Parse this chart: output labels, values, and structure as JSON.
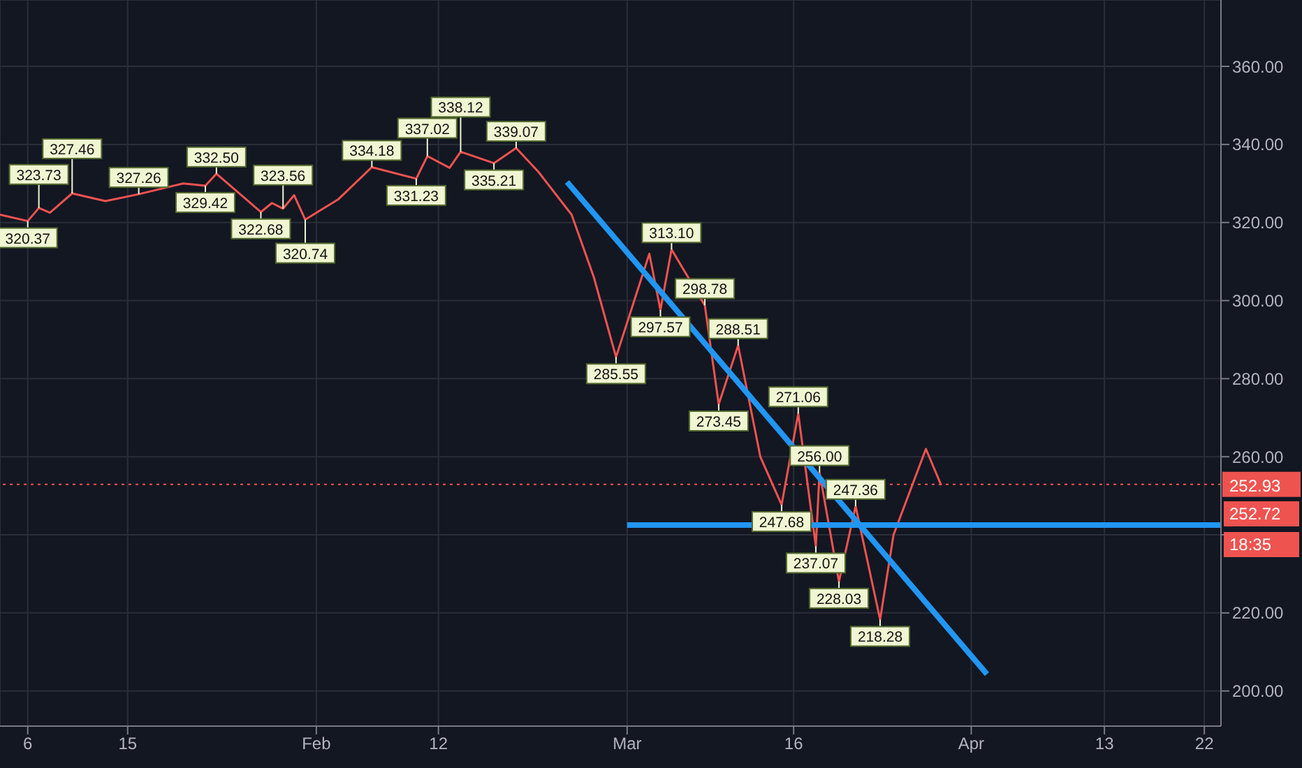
{
  "chart_data": {
    "type": "line",
    "xlim": [
      "--01-03T12:00",
      "--04-23T12:00"
    ],
    "xticks": [
      {
        "value": "--01-06",
        "label": "6"
      },
      {
        "value": "--01-15",
        "label": "15"
      },
      {
        "value": "--02-01",
        "label": "Feb"
      },
      {
        "value": "--02-12",
        "label": "12"
      },
      {
        "value": "--03-01",
        "label": "Mar"
      },
      {
        "value": "--03-16",
        "label": "16"
      },
      {
        "value": "--04-01",
        "label": "Apr"
      },
      {
        "value": "--04-13",
        "label": "13"
      },
      {
        "value": "--04-22",
        "label": "22"
      }
    ],
    "ylim": [
      191,
      377
    ],
    "yticks": [
      {
        "value": 200,
        "label": "200.00"
      },
      {
        "value": 220,
        "label": "220.00"
      },
      {
        "value": 240,
        "label": null
      },
      {
        "value": 260,
        "label": "260.00"
      },
      {
        "value": 280,
        "label": "280.00"
      },
      {
        "value": 300,
        "label": "300.00"
      },
      {
        "value": 320,
        "label": "320.00"
      },
      {
        "value": 340,
        "label": "340.00"
      },
      {
        "value": 360,
        "label": "360.00"
      }
    ],
    "grid": true,
    "series": [
      {
        "color": "#ef5350",
        "x": [
          "--01-03T12:00",
          "--01-06",
          "--01-07",
          "--01-08",
          "--01-10",
          "--01-13",
          "--01-16",
          "--01-20",
          "--01-22",
          "--01-23",
          "--01-27",
          "--01-28",
          "--01-29",
          "--01-30",
          "--01-31",
          "--02-03",
          "--02-06",
          "--02-10",
          "--02-11",
          "--02-13",
          "--02-14",
          "--02-17",
          "--02-19",
          "--02-21",
          "--02-24",
          "--02-26",
          "--02-28",
          "--03-03",
          "--03-04",
          "--03-05",
          "--03-08",
          "--03-09T06:00",
          "--03-11",
          "--03-13",
          "--03-14T22:00",
          "--03-16T10:00",
          "--03-18T00:00",
          "--03-18T08:00",
          "--03-20T02:00",
          "--03-21T14:00",
          "--03-23T19:00",
          "--03-25",
          "--03-27T22:00",
          "--03-29T07:00"
        ],
        "values": [
          322,
          320.37,
          323.73,
          322.5,
          327.46,
          325.5,
          327.26,
          330,
          329.42,
          332.5,
          322.68,
          325,
          323.56,
          327,
          320.74,
          326,
          334.18,
          331.23,
          337.02,
          334,
          338.12,
          335.21,
          339.07,
          333,
          322,
          306,
          285.55,
          312,
          297.57,
          313.1,
          298.78,
          273.45,
          288.51,
          260,
          247.68,
          271.06,
          237.07,
          256,
          228.03,
          247.36,
          218.28,
          240,
          262,
          252.72
        ]
      },
      {
        "color": "#2196f3",
        "x": [
          "--02-23T14:00",
          "--04-02T10:00"
        ],
        "values": [
          330.4,
          204.3
        ]
      },
      {
        "color": "#2196f3",
        "x": [
          "--03-01",
          "--04-23T12:00"
        ],
        "values": [
          242.5,
          242.5
        ]
      }
    ],
    "ref_lines": [
      {
        "axis": "y",
        "value": 252.93,
        "label": "252.93",
        "color": "#ef5350",
        "line_style": "dotted"
      }
    ],
    "annotations": [
      {
        "text": "320.37",
        "x": "--01-06",
        "y": 320.37
      },
      {
        "text": "323.73",
        "x": "--01-07",
        "y": 323.73
      },
      {
        "text": "327.46",
        "x": "--01-10",
        "y": 327.46
      },
      {
        "text": "327.26",
        "x": "--01-16",
        "y": 327.26
      },
      {
        "text": "329.42",
        "x": "--01-22",
        "y": 329.42
      },
      {
        "text": "332.50",
        "x": "--01-23",
        "y": 332.5
      },
      {
        "text": "322.68",
        "x": "--01-27",
        "y": 322.68
      },
      {
        "text": "323.56",
        "x": "--01-29",
        "y": 323.56
      },
      {
        "text": "320.74",
        "x": "--01-31",
        "y": 320.74
      },
      {
        "text": "334.18",
        "x": "--02-06",
        "y": 334.18
      },
      {
        "text": "331.23",
        "x": "--02-10",
        "y": 331.23
      },
      {
        "text": "337.02",
        "x": "--02-11",
        "y": 337.02
      },
      {
        "text": "338.12",
        "x": "--02-14",
        "y": 338.12
      },
      {
        "text": "335.21",
        "x": "--02-17",
        "y": 335.21
      },
      {
        "text": "339.07",
        "x": "--02-19",
        "y": 339.07
      },
      {
        "text": "285.55",
        "x": "--02-28",
        "y": 285.55
      },
      {
        "text": "297.57",
        "x": "--03-04",
        "y": 297.57
      },
      {
        "text": "313.10",
        "x": "--03-05",
        "y": 313.1
      },
      {
        "text": "298.78",
        "x": "--03-08",
        "y": 298.78
      },
      {
        "text": "273.45",
        "x": "--03-09T06:00",
        "y": 273.45
      },
      {
        "text": "288.51",
        "x": "--03-11",
        "y": 288.51
      },
      {
        "text": "247.68",
        "x": "--03-14T22:00",
        "y": 247.68
      },
      {
        "text": "271.06",
        "x": "--03-16T10:00",
        "y": 271.06
      },
      {
        "text": "237.07",
        "x": "--03-18T00:00",
        "y": 237.07
      },
      {
        "text": "256.00",
        "x": "--03-18T08:00",
        "y": 256
      },
      {
        "text": "228.03",
        "x": "--03-20T02:00",
        "y": 228.03
      },
      {
        "text": "247.36",
        "x": "--03-21T14:00",
        "y": 247.36
      },
      {
        "text": "218.28",
        "x": "--03-23T19:00",
        "y": 218.28
      },
      "252.72",
      "18:35"
    ]
  }
}
